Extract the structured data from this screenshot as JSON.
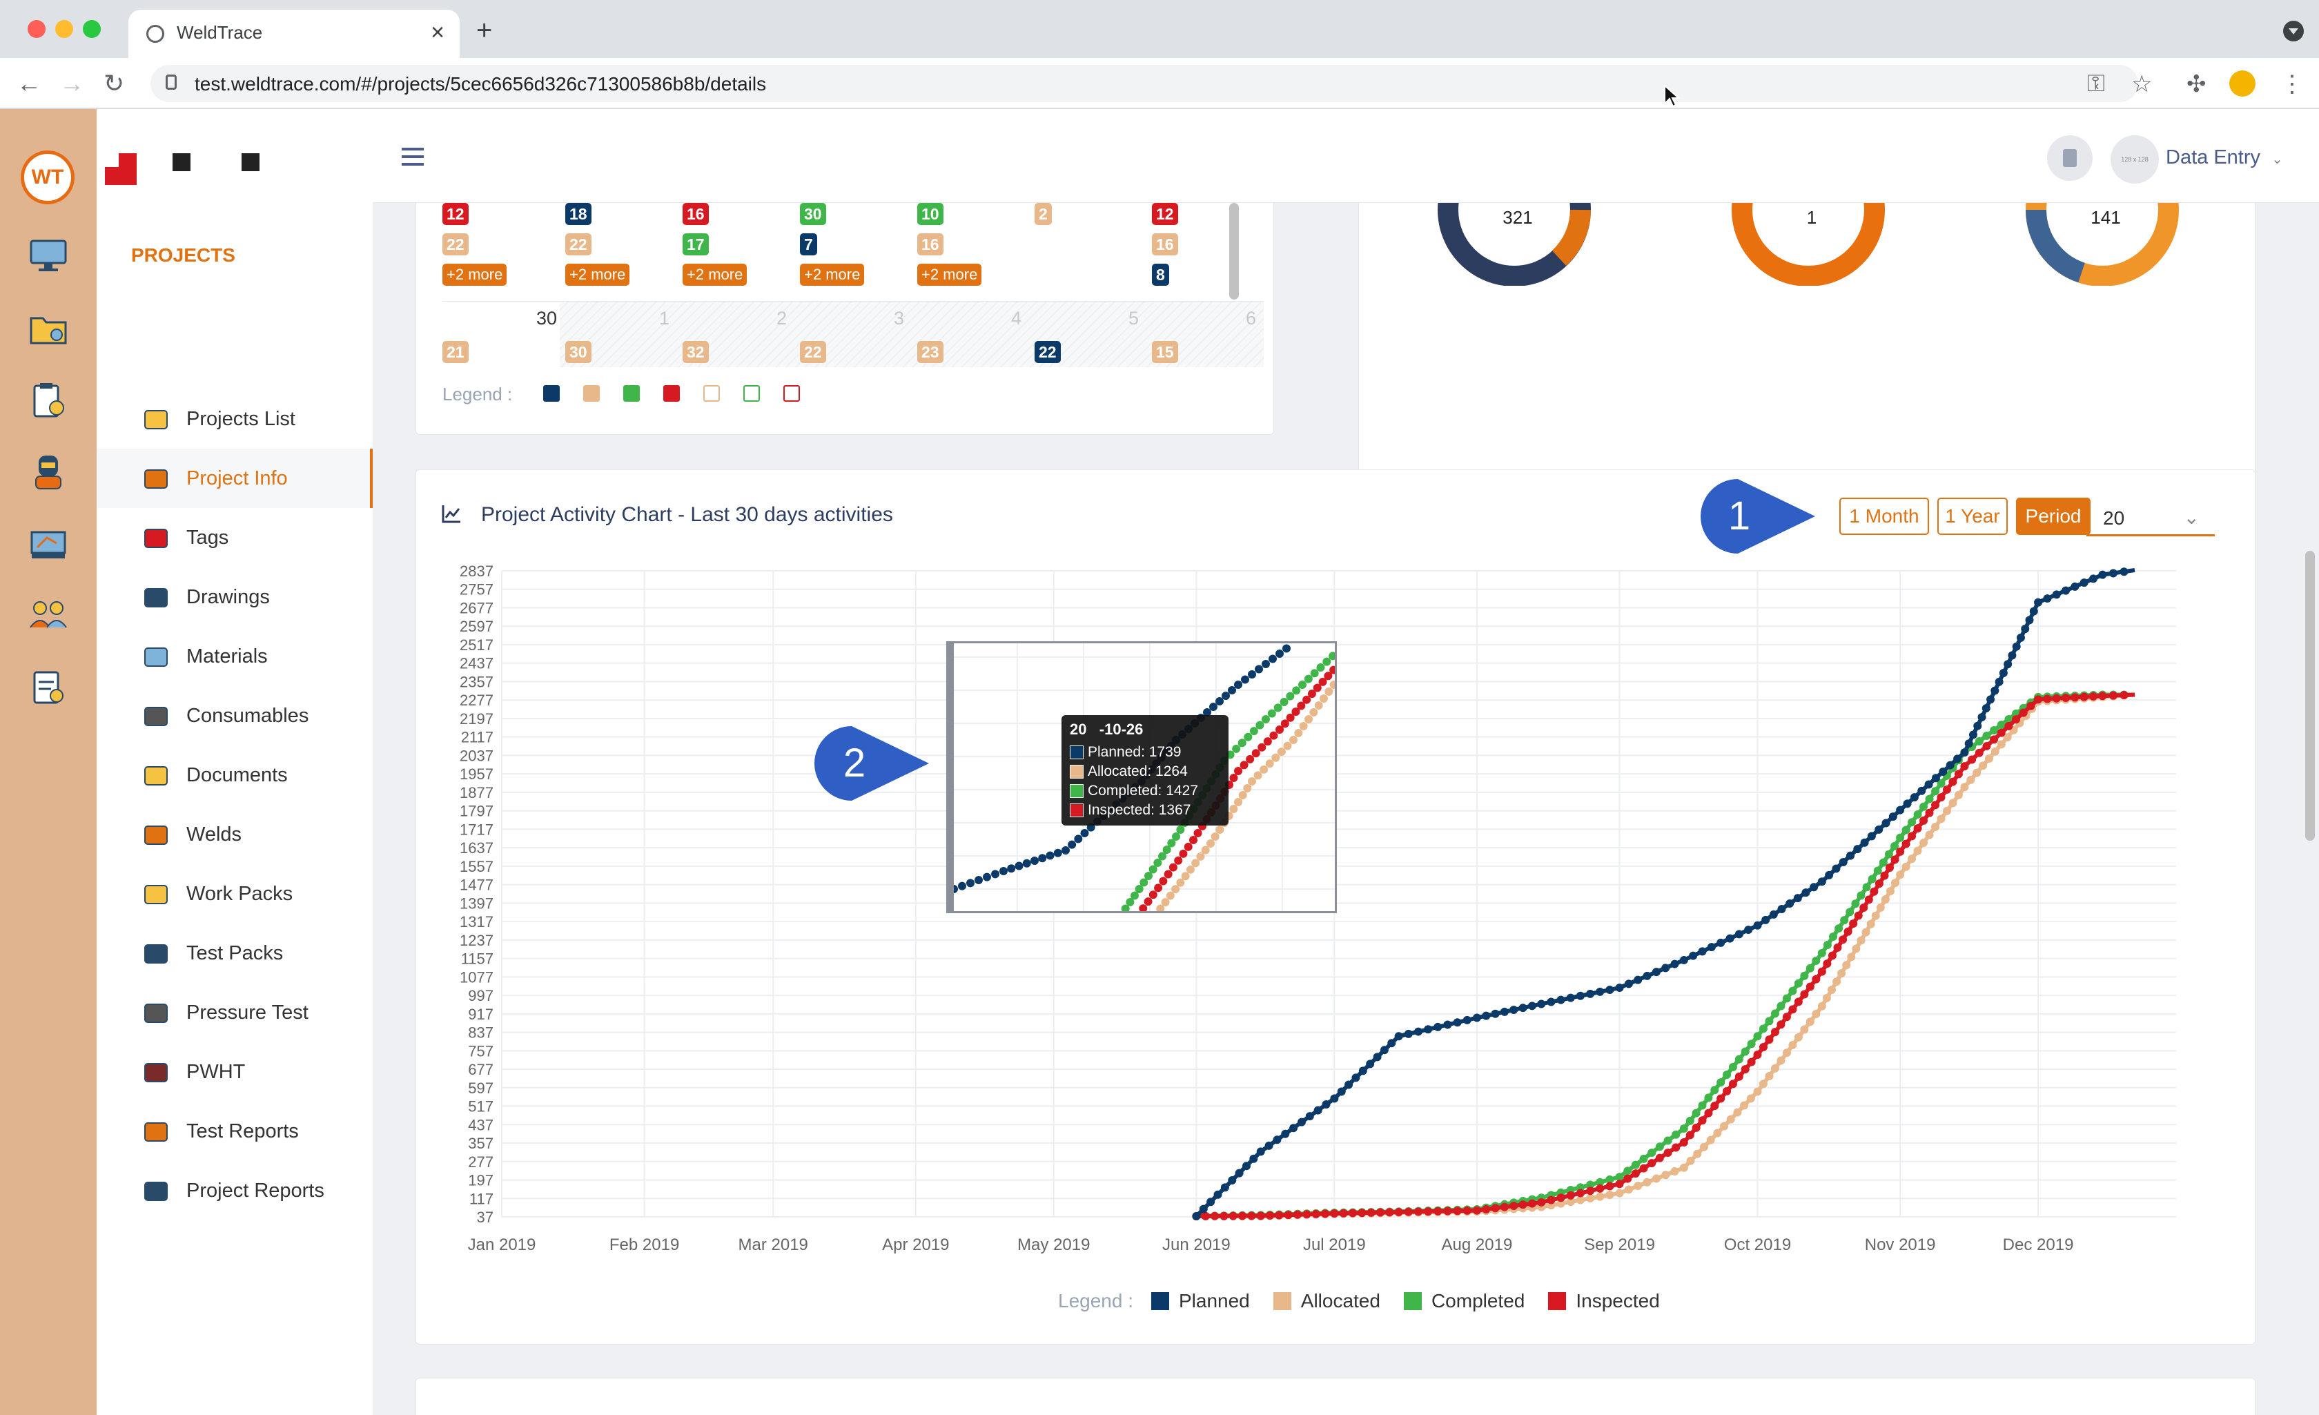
{
  "browser": {
    "tab_title": "WeldTrace",
    "url": "test.weldtrace.com/#/projects/5cec6656d326c71300586b8b/details"
  },
  "header": {
    "user_label": "Data Entry",
    "avatar_text": "128 x 128"
  },
  "sidebar": {
    "section": "PROJECTS",
    "items": [
      {
        "label": "Projects List",
        "icon": "folder-camera-icon"
      },
      {
        "label": "Project Info",
        "icon": "gears-info-icon"
      },
      {
        "label": "Tags",
        "icon": "tag-icon"
      },
      {
        "label": "Drawings",
        "icon": "drawing-tools-icon"
      },
      {
        "label": "Materials",
        "icon": "pipes-icon"
      },
      {
        "label": "Consumables",
        "icon": "rods-icon"
      },
      {
        "label": "Documents",
        "icon": "folder-icon"
      },
      {
        "label": "Welds",
        "icon": "welding-icon"
      },
      {
        "label": "Work Packs",
        "icon": "box-icon"
      },
      {
        "label": "Test Packs",
        "icon": "radiation-icon"
      },
      {
        "label": "Pressure Test",
        "icon": "gauge-icon"
      },
      {
        "label": "PWHT",
        "icon": "heater-icon"
      },
      {
        "label": "Test Reports",
        "icon": "clipboard-icon"
      },
      {
        "label": "Project Reports",
        "icon": "report-chart-icon"
      }
    ]
  },
  "calendar": {
    "legend_label": "Legend :",
    "more_label": "+2 more",
    "row1": [
      {
        "a": "12",
        "b": "22",
        "more": true
      },
      {
        "a": "18",
        "b": "22",
        "more": true
      },
      {
        "a": "16",
        "b": "17",
        "more": true
      },
      {
        "a": "30",
        "b": "7",
        "more": true
      },
      {
        "a": "10",
        "b": "16",
        "more": true
      },
      {
        "a": "2",
        "b": "",
        "more": false
      },
      {
        "a": "12",
        "b": "16",
        "c": "8",
        "more": false
      }
    ],
    "row2_days": [
      "30",
      "1",
      "2",
      "3",
      "4",
      "5",
      "6"
    ],
    "row2_badges": [
      "21",
      "30",
      "32",
      "22",
      "23",
      "22",
      "15"
    ]
  },
  "donuts": [
    "321",
    "1",
    "141"
  ],
  "activity": {
    "title": "Project Activity Chart - Last 30 days activities",
    "filters": [
      "1 Month",
      "1 Year",
      "Period"
    ],
    "active_filter": "Period",
    "year_value": "20",
    "legend_label": "Legend :",
    "tooltip": {
      "date": "20   -10-26",
      "rows": [
        "Planned: 1739",
        "Allocated: 1264",
        "Completed: 1427",
        "Inspected: 1367"
      ]
    }
  },
  "callouts": [
    "1",
    "2"
  ],
  "colors": {
    "planned": "#0b3a68",
    "allocated": "#e8b88a",
    "completed": "#3fb54a",
    "inspected": "#d71921",
    "accent": "#e07212"
  },
  "chart_data": {
    "type": "line",
    "title": "Project Activity Chart - Last 30 days activities",
    "x": [
      "2019-06-01",
      "2019-06-15",
      "2019-07-01",
      "2019-07-15",
      "2019-08-01",
      "2019-08-15",
      "2019-09-01",
      "2019-09-15",
      "2019-10-01",
      "2019-10-15",
      "2019-11-01",
      "2019-11-15",
      "2019-12-01",
      "2019-12-15",
      "2019-12-22"
    ],
    "xticks": [
      "Jan 2019",
      "Feb 2019",
      "Mar 2019",
      "Apr 2019",
      "May 2019",
      "Jun 2019",
      "Jul 2019",
      "Aug 2019",
      "Sep 2019",
      "Oct 2019",
      "Nov 2019",
      "Dec 2019"
    ],
    "yticks": [
      37,
      117,
      197,
      277,
      357,
      437,
      517,
      597,
      677,
      757,
      837,
      917,
      997,
      1077,
      1157,
      1237,
      1317,
      1397,
      1477,
      1557,
      1637,
      1717,
      1797,
      1877,
      1957,
      2037,
      2117,
      2197,
      2277,
      2357,
      2437,
      2517,
      2597,
      2677,
      2757,
      2837
    ],
    "ylim": [
      37,
      2837
    ],
    "series": [
      {
        "name": "Planned",
        "values": [
          40,
          320,
          550,
          820,
          900,
          960,
          1030,
          1150,
          1300,
          1490,
          1800,
          2050,
          2700,
          2820,
          2840
        ]
      },
      {
        "name": "Allocated",
        "values": [
          40,
          40,
          50,
          55,
          60,
          80,
          140,
          250,
          580,
          950,
          1520,
          1900,
          2270,
          2290,
          2300
        ]
      },
      {
        "name": "Completed",
        "values": [
          40,
          45,
          55,
          60,
          70,
          120,
          210,
          420,
          820,
          1180,
          1680,
          2050,
          2290,
          2300,
          2300
        ]
      },
      {
        "name": "Inspected",
        "values": [
          40,
          42,
          52,
          58,
          65,
          100,
          180,
          360,
          740,
          1100,
          1620,
          1990,
          2280,
          2295,
          2300
        ]
      }
    ]
  }
}
